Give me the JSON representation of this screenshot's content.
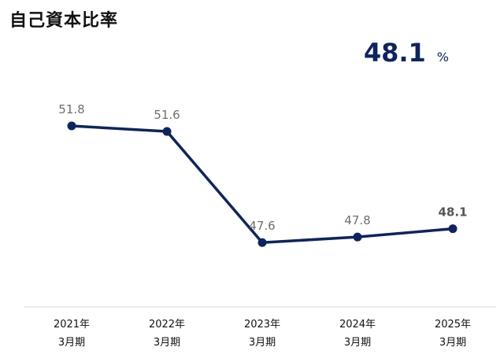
{
  "title": "自己資本比率",
  "headline": {
    "value": "48.1",
    "unit": "%"
  },
  "colors": {
    "line": "#0d2461",
    "headline": "#0d2461",
    "axis": "#d9d9d9",
    "label": "#6e6e6e"
  },
  "chart_data": {
    "type": "line",
    "title": "自己資本比率",
    "categories": [
      [
        "2021年",
        "3月期"
      ],
      [
        "2022年",
        "3月期"
      ],
      [
        "2023年",
        "3月期"
      ],
      [
        "2024年",
        "3月期"
      ],
      [
        "2025年",
        "3月期"
      ]
    ],
    "values": [
      51.8,
      51.6,
      47.6,
      47.8,
      48.1
    ],
    "data_labels": [
      "51.8",
      "51.6",
      "47.6",
      "47.8",
      "48.1"
    ],
    "highlight_last": true,
    "ylim": [
      45,
      53.5
    ],
    "grid": false,
    "legend": "none"
  }
}
